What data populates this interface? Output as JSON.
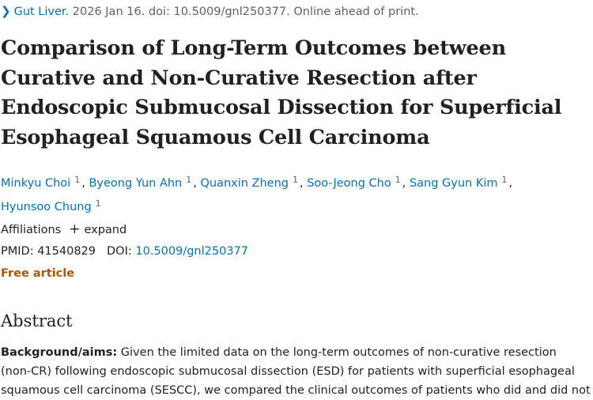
{
  "citation": {
    "journal": "Gut Liver.",
    "details": "2026 Jan 16. doi: 10.5009/gnl250377. Online ahead of print."
  },
  "title_lines": [
    "Comparison of Long-Term Outcomes between",
    "Curative and Non-Curative Resection after",
    "Endoscopic Submucosal Dissection for Superficial",
    "Esophageal Squamous Cell Carcinoma"
  ],
  "authors": [
    {
      "name": "Minkyu Choi",
      "aff": "1"
    },
    {
      "name": "Byeong Yun Ahn",
      "aff": "1"
    },
    {
      "name": "Quanxin Zheng",
      "aff": "1"
    },
    {
      "name": "Soo-Jeong Cho",
      "aff": "1"
    },
    {
      "name": "Sang Gyun Kim",
      "aff": "1"
    },
    {
      "name": "Hyunsoo Chung",
      "aff": "1"
    }
  ],
  "affiliations": {
    "label": "Affiliations",
    "expand_icon": "plus-icon",
    "expand_label": "expand"
  },
  "ids": {
    "pmid_label": "PMID:",
    "pmid": "41540829",
    "doi_label": "DOI:",
    "doi": "10.5009/gnl250377"
  },
  "free_article": "Free article",
  "abstract": {
    "heading": "Abstract",
    "label": "Background/aims:",
    "lines": [
      " Given the limited data on the long-term outcomes of non-curative resection",
      "(non-CR) following endoscopic submucosal dissection (ESD) for patients with superficial esophageal",
      "squamous cell carcinoma (SESCC), we compared the clinical outcomes of patients who did and did not"
    ]
  },
  "colors": {
    "link": "#0071bc",
    "free": "#b65400",
    "text": "#212121",
    "muted": "#5b616b"
  }
}
